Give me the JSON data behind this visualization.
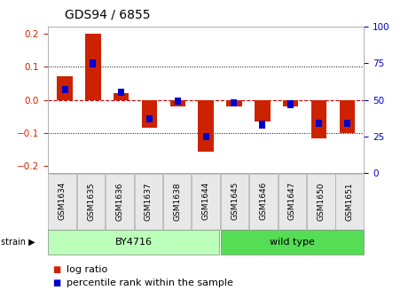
{
  "title": "GDS94 / 6855",
  "samples": [
    "GSM1634",
    "GSM1635",
    "GSM1636",
    "GSM1637",
    "GSM1638",
    "GSM1644",
    "GSM1645",
    "GSM1646",
    "GSM1647",
    "GSM1650",
    "GSM1651"
  ],
  "log_ratio": [
    0.07,
    0.2,
    0.02,
    -0.085,
    -0.02,
    -0.155,
    -0.02,
    -0.065,
    -0.02,
    -0.115,
    -0.1
  ],
  "percentile_rank": [
    57,
    75,
    55,
    37,
    49,
    25,
    48,
    33,
    47,
    34,
    34
  ],
  "by4716_count": 6,
  "wildtype_count": 5,
  "by4716_color": "#bbffbb",
  "wildtype_color": "#55dd55",
  "bar_color": "#cc2200",
  "pct_color": "#0000cc",
  "ylim_left": [
    -0.22,
    0.22
  ],
  "ylim_right": [
    0,
    100
  ],
  "yticks_left": [
    -0.2,
    -0.1,
    0.0,
    0.1,
    0.2
  ],
  "yticks_right": [
    0,
    25,
    50,
    75,
    100
  ],
  "grid_color": "#000000",
  "zero_line_color": "#cc0000",
  "bg_color": "#ffffff",
  "bar_width": 0.55,
  "title_fontsize": 10,
  "tick_fontsize": 7.5,
  "sample_fontsize": 6.5,
  "legend_fontsize": 8,
  "strain_fontsize": 8,
  "strain_label_fontsize": 7
}
